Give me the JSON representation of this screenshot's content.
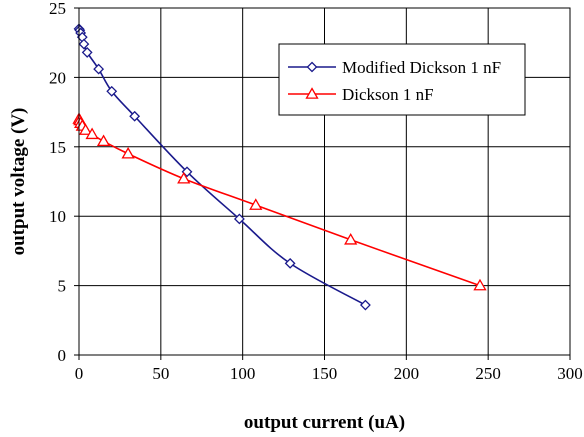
{
  "chart_data": {
    "type": "line",
    "xlabel": "output current (uA)",
    "ylabel": "output voltage (V)",
    "xlim": [
      0,
      300
    ],
    "ylim": [
      0,
      25
    ],
    "x_ticks": [
      0,
      50,
      100,
      150,
      200,
      250,
      300
    ],
    "y_ticks": [
      0,
      5,
      10,
      15,
      20,
      25
    ],
    "grid": true,
    "legend_position": "top-right",
    "series": [
      {
        "name": "Modified Dickson 1 nF",
        "color": "#1a1a8c",
        "marker": "diamond",
        "points": [
          [
            0,
            23.5
          ],
          [
            0.5,
            23.4
          ],
          [
            1,
            23.2
          ],
          [
            2,
            22.9
          ],
          [
            3,
            22.4
          ],
          [
            5,
            21.8
          ],
          [
            12,
            20.6
          ],
          [
            20,
            19.0
          ],
          [
            34,
            17.2
          ],
          [
            66,
            13.2
          ],
          [
            98,
            9.8
          ],
          [
            129,
            6.6
          ],
          [
            175,
            3.6
          ]
        ]
      },
      {
        "name": "Dickson 1 nF",
        "color": "#ff0000",
        "marker": "triangle",
        "points": [
          [
            0,
            17.0
          ],
          [
            0.5,
            16.9
          ],
          [
            1,
            16.7
          ],
          [
            2,
            16.5
          ],
          [
            4,
            16.2
          ],
          [
            8,
            15.9
          ],
          [
            15,
            15.4
          ],
          [
            30,
            14.5
          ],
          [
            64,
            12.7
          ],
          [
            108,
            10.8
          ],
          [
            166,
            8.3
          ],
          [
            245,
            5.0
          ]
        ]
      }
    ]
  }
}
